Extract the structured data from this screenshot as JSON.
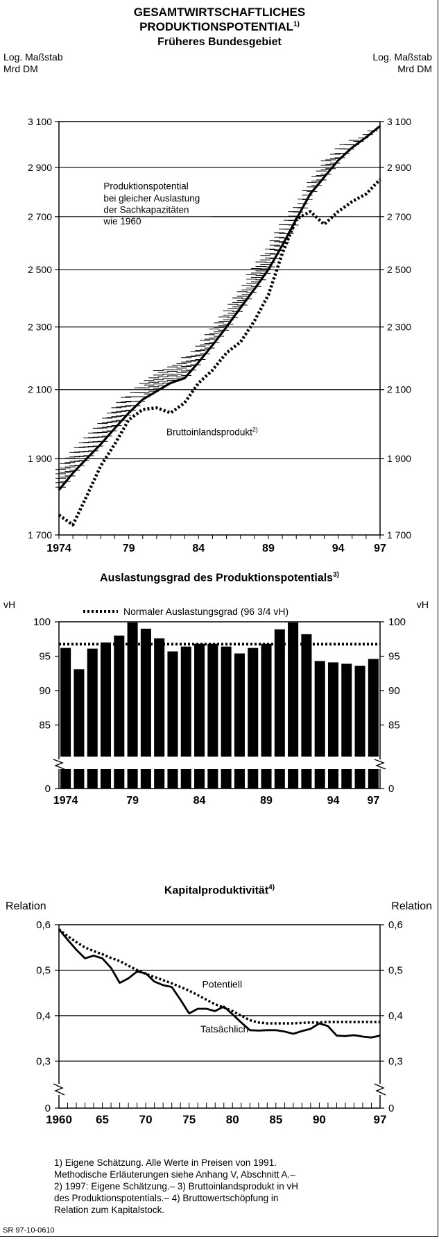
{
  "header": {
    "title_line1": "GESAMTWIRTSCHAFTLICHES",
    "title_line2": "PRODUKTIONSPOTENTIAL",
    "title_footnote": "1)"
  },
  "footnotes": [
    "1) Eigene Schätzung. Alle Werte in Preisen von 1991.",
    "Methodische Erläuterungen siehe Anhang V, Abschnitt A.–",
    "2) 1997: Eigene Schätzung.– 3) Bruttoinlandsprodukt in vH",
    "des Produktionspotentials.– 4) Bruttowertschöpfung in",
    "Relation zum Kapitalstock."
  ],
  "source_code": "SR 97-10-0610",
  "chart_data": [
    {
      "type": "line",
      "title": "Früheres Bundesgebiet",
      "ylabel_left": [
        "Log. Maßstab",
        "Mrd DM"
      ],
      "ylabel_right": [
        "Log. Maßstab",
        "Mrd DM"
      ],
      "yscale": "log",
      "ylim": [
        1700,
        3100
      ],
      "yticks": [
        1700,
        1900,
        2100,
        2300,
        2500,
        2700,
        2900,
        3100
      ],
      "xlim": [
        1974,
        1997
      ],
      "xticklabels": [
        {
          "x": 1974,
          "label": "1974"
        },
        {
          "x": 1979,
          "label": "79"
        },
        {
          "x": 1984,
          "label": "84"
        },
        {
          "x": 1989,
          "label": "89"
        },
        {
          "x": 1994,
          "label": "94"
        },
        {
          "x": 1997,
          "label": "97"
        }
      ],
      "grid": true,
      "annotations": [
        {
          "text": "Produktionspotential",
          "x": 1977.2,
          "y": 2810
        },
        {
          "text": "bei gleicher Auslastung",
          "x": 1977.2,
          "y": 2760
        },
        {
          "text": "der Sachkapazitäten",
          "x": 1977.2,
          "y": 2715
        },
        {
          "text": "wie 1960",
          "x": 1977.2,
          "y": 2670
        },
        {
          "text": "Bruttoinlandsprodukt",
          "footnote": "2)",
          "x": 1981.7,
          "y": 1965
        }
      ],
      "x": [
        1974,
        1975,
        1976,
        1977,
        1978,
        1979,
        1980,
        1981,
        1982,
        1983,
        1984,
        1985,
        1986,
        1987,
        1988,
        1989,
        1990,
        1991,
        1992,
        1993,
        1994,
        1995,
        1996,
        1997
      ],
      "series": [
        {
          "name": "Produktionspotential",
          "style": "solid",
          "values": [
            1815,
            1860,
            1900,
            1940,
            1985,
            2030,
            2070,
            2095,
            2120,
            2135,
            2185,
            2240,
            2300,
            2365,
            2430,
            2500,
            2590,
            2690,
            2790,
            2860,
            2930,
            2985,
            3030,
            3080
          ]
        },
        {
          "name": "Produktionspotential bei gleicher Auslastung der Sachkapazitäten wie 1960",
          "style": "hatched-band-upper",
          "values": [
            1880,
            1925,
            1965,
            2005,
            2050,
            2090,
            2130,
            2160,
            2180,
            2200,
            2250,
            2305,
            2365,
            2435,
            2505,
            2580,
            2670,
            2750,
            2850,
            2930,
            2990,
            3020,
            3050,
            3080
          ]
        },
        {
          "name": "Bruttoinlandsprodukt",
          "style": "dotted",
          "values": [
            1750,
            1725,
            1800,
            1880,
            1940,
            2010,
            2040,
            2045,
            2030,
            2060,
            2120,
            2160,
            2215,
            2250,
            2320,
            2410,
            2560,
            2690,
            2720,
            2670,
            2720,
            2760,
            2790,
            2850
          ]
        }
      ]
    },
    {
      "type": "bar",
      "title": "Auslastungsgrad des Produktionspotentials",
      "title_footnote": "3)",
      "legend": {
        "text": "Normaler Auslastungsgrad (96 3/4 vH)",
        "style": "dotted",
        "placement": "top"
      },
      "ylabel_left": "vH",
      "ylabel_right": "vH",
      "ylim": [
        80,
        100
      ],
      "axis_break": true,
      "yticks": [
        0,
        85,
        90,
        95,
        100
      ],
      "reference_line": 96.75,
      "categories": [
        "1974",
        "1975",
        "1976",
        "1977",
        "1978",
        "1979",
        "1980",
        "1981",
        "1982",
        "1983",
        "1984",
        "1985",
        "1986",
        "1987",
        "1988",
        "1989",
        "1990",
        "1991",
        "1992",
        "1993",
        "1994",
        "1995",
        "1996",
        "1997"
      ],
      "xticklabels": [
        {
          "x": 1974,
          "label": "1974"
        },
        {
          "x": 1979,
          "label": "79"
        },
        {
          "x": 1984,
          "label": "84"
        },
        {
          "x": 1989,
          "label": "89"
        },
        {
          "x": 1994,
          "label": "94"
        },
        {
          "x": 1997,
          "label": "97"
        }
      ],
      "values": [
        96.2,
        93.1,
        96.1,
        97.0,
        98.0,
        100.0,
        99.0,
        97.6,
        95.7,
        96.4,
        96.8,
        96.8,
        96.4,
        95.4,
        96.2,
        96.8,
        98.9,
        100.0,
        98.2,
        94.3,
        94.1,
        93.9,
        93.6,
        94.6
      ]
    },
    {
      "type": "line",
      "title": "Kapitalproduktivität",
      "title_footnote": "4)",
      "ylabel_left": "Relation",
      "ylabel_right": "Relation",
      "ylim": [
        0.25,
        0.6
      ],
      "axis_break": true,
      "yticks": [
        0,
        0.3,
        0.4,
        0.5,
        0.6
      ],
      "yticklabels": [
        "0",
        "0,3",
        "0,4",
        "0,5",
        "0,6"
      ],
      "xlim": [
        1960,
        1997
      ],
      "xticklabels": [
        {
          "x": 1960,
          "label": "1960"
        },
        {
          "x": 1965,
          "label": "65"
        },
        {
          "x": 1970,
          "label": "70"
        },
        {
          "x": 1975,
          "label": "75"
        },
        {
          "x": 1980,
          "label": "80"
        },
        {
          "x": 1985,
          "label": "85"
        },
        {
          "x": 1990,
          "label": "90"
        },
        {
          "x": 1997,
          "label": "97"
        }
      ],
      "grid": true,
      "annotations": [
        {
          "text": "Potentiell",
          "x": 1976.5,
          "y": 0.462
        },
        {
          "text": "Tatsächlich",
          "x": 1976.3,
          "y": 0.363
        }
      ],
      "x": [
        1960,
        1961,
        1962,
        1963,
        1964,
        1965,
        1966,
        1967,
        1968,
        1969,
        1970,
        1971,
        1972,
        1973,
        1974,
        1975,
        1976,
        1977,
        1978,
        1979,
        1980,
        1981,
        1982,
        1983,
        1984,
        1985,
        1986,
        1987,
        1988,
        1989,
        1990,
        1991,
        1992,
        1993,
        1994,
        1995,
        1996,
        1997
      ],
      "series": [
        {
          "name": "Potentiell",
          "style": "dotted",
          "values": [
            0.59,
            0.575,
            0.562,
            0.55,
            0.542,
            0.535,
            0.527,
            0.52,
            0.51,
            0.5,
            0.492,
            0.485,
            0.478,
            0.471,
            0.463,
            0.455,
            0.445,
            0.435,
            0.425,
            0.418,
            0.41,
            0.4,
            0.39,
            0.385,
            0.383,
            0.383,
            0.383,
            0.383,
            0.384,
            0.385,
            0.385,
            0.386,
            0.386,
            0.386,
            0.386,
            0.386,
            0.386,
            0.386
          ]
        },
        {
          "name": "Tatsächlich",
          "style": "solid",
          "values": [
            0.59,
            0.567,
            0.545,
            0.526,
            0.532,
            0.526,
            0.505,
            0.472,
            0.482,
            0.497,
            0.493,
            0.475,
            0.467,
            0.463,
            0.435,
            0.405,
            0.415,
            0.415,
            0.41,
            0.42,
            0.403,
            0.385,
            0.368,
            0.367,
            0.368,
            0.368,
            0.365,
            0.36,
            0.366,
            0.371,
            0.383,
            0.377,
            0.356,
            0.355,
            0.357,
            0.354,
            0.352,
            0.356
          ]
        }
      ]
    }
  ]
}
